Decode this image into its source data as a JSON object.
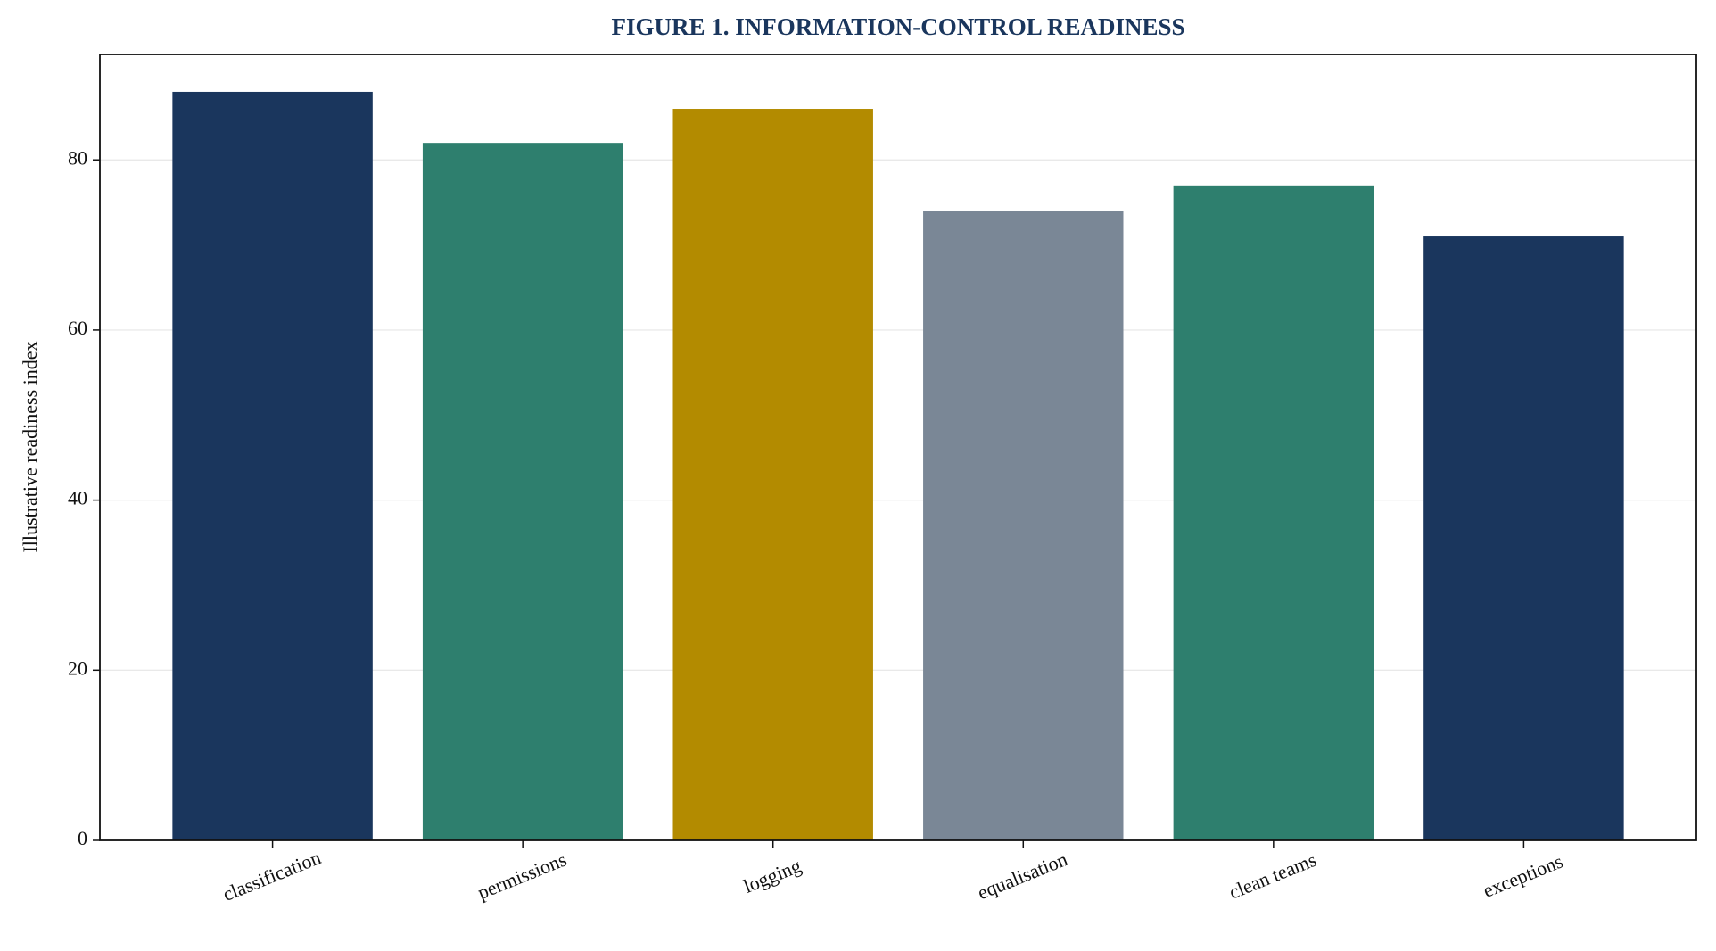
{
  "chart_data": {
    "type": "bar",
    "title": "FIGURE 1. INFORMATION-CONTROL READINESS",
    "y_label": "Illustrative readiness index",
    "categories": [
      "classification",
      "permissions",
      "logging",
      "equalisation",
      "clean teams",
      "exceptions"
    ],
    "values": [
      88,
      82,
      86,
      74,
      77,
      71
    ],
    "colors": [
      "#1a365d",
      "#2e7f6e",
      "#b38b00",
      "#7a8796",
      "#2e7f6e",
      "#1a365d"
    ],
    "ylim": [
      0,
      92.4
    ],
    "yticks": [
      0,
      20,
      40,
      60,
      80
    ],
    "grid": true
  }
}
